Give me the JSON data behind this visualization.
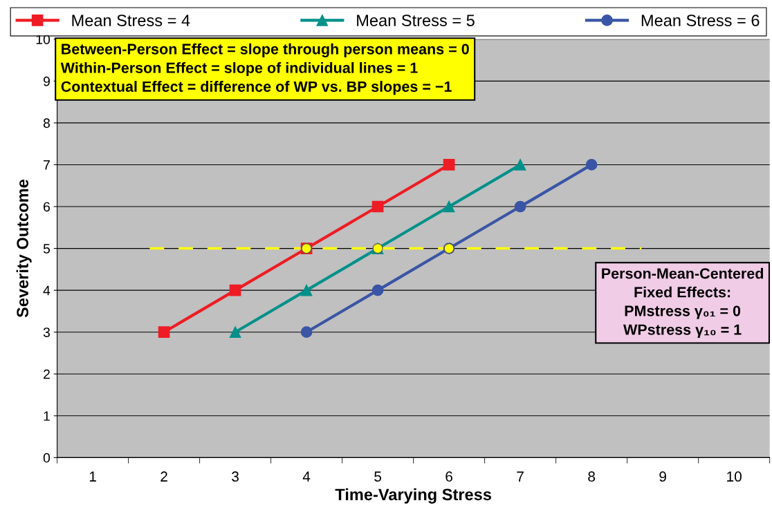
{
  "chart_data": {
    "type": "line",
    "xlabel": "Time-Varying Stress",
    "ylabel": "Severity Outcome",
    "categories": [
      "1",
      "2",
      "3",
      "4",
      "5",
      "6",
      "7",
      "8",
      "9",
      "10"
    ],
    "series": [
      {
        "name": "Mean Stress = 4",
        "color": "#ee1c24",
        "marker": "square",
        "values": [
          null,
          3,
          4,
          5,
          6,
          7,
          null,
          null,
          null,
          null
        ]
      },
      {
        "name": "Mean Stress = 5",
        "color": "#00918a",
        "marker": "triangle",
        "values": [
          null,
          null,
          3,
          4,
          5,
          6,
          7,
          null,
          null,
          null
        ]
      },
      {
        "name": "Mean Stress = 6",
        "color": "#3a55a5",
        "marker": "circle",
        "values": [
          null,
          null,
          null,
          3,
          4,
          5,
          6,
          7,
          null,
          null
        ]
      },
      {
        "type": "scatter",
        "color": "#ffff00",
        "marker": "circle",
        "x": [
          "4",
          "5",
          "6"
        ],
        "values": [
          5,
          5,
          5
        ]
      }
    ],
    "ref_lines": [
      {
        "axis": "y",
        "value": 5,
        "color": "#ffff00",
        "line_style": "dashed"
      }
    ],
    "ylim": [
      0,
      10
    ],
    "yticks": [
      0,
      1,
      2,
      3,
      4,
      5,
      6,
      7,
      8,
      9,
      10
    ],
    "grid": "y",
    "legend": "top",
    "annotations": [
      "Between-Person Effect = slope through person means = 0\nWithin-Person Effect = slope of individual lines = 1\nContextual Effect = difference of WP vs. BP slopes = −1",
      "Person-Mean-Centered\nFixed Effects:\nPMstress γ₀₁ = 0\nWPstress γ₁₀ = 1"
    ]
  }
}
